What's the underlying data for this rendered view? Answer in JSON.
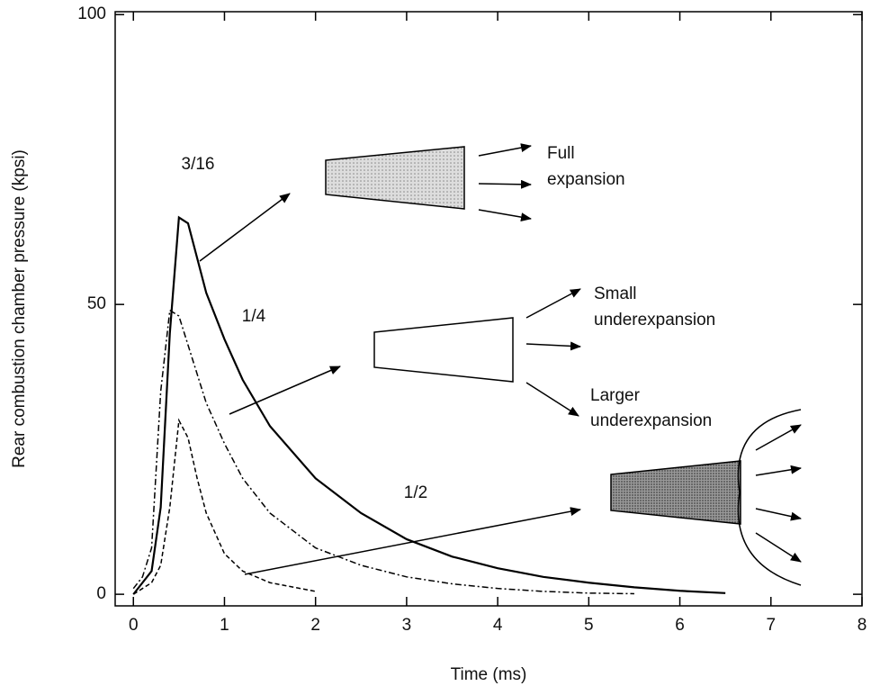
{
  "chart_data": {
    "type": "line",
    "xlabel": "Time (ms)",
    "ylabel": "Rear combustion chamber pressure (kpsi)",
    "xlim": [
      -0.2,
      8
    ],
    "ylim": [
      -2,
      100.5
    ],
    "xticks": [
      0,
      1,
      2,
      3,
      4,
      5,
      6,
      7,
      8
    ],
    "yticks": [
      0,
      50,
      100
    ],
    "x": [
      0,
      0.1,
      0.2,
      0.3,
      0.4,
      0.5,
      0.6,
      0.7,
      0.8,
      1,
      1.2,
      1.5,
      2,
      2.5,
      3,
      3.5,
      4,
      4.5,
      5,
      5.5,
      6,
      6.5
    ],
    "series": [
      {
        "name": "3/16",
        "color": "#000000",
        "dash": "solid",
        "values": [
          0,
          2,
          4,
          15,
          45,
          65,
          64,
          58,
          52,
          44,
          37,
          29,
          20,
          14,
          9.5,
          6.5,
          4.5,
          3,
          2,
          1.2,
          0.6,
          0.2
        ]
      },
      {
        "name": "1/4",
        "color": "#000000",
        "dash": "dashdot",
        "values": [
          1,
          3,
          8,
          35,
          49,
          48,
          43,
          38,
          33,
          26,
          20,
          14,
          8,
          5,
          3,
          1.8,
          1,
          0.5,
          0.2,
          0.1,
          null,
          null
        ]
      },
      {
        "name": "1/2",
        "color": "#000000",
        "dash": "dashed",
        "values": [
          0,
          1,
          2,
          5,
          15,
          30,
          27,
          20,
          14,
          7,
          4,
          2,
          0.5,
          null,
          null,
          null,
          null,
          null,
          null,
          null,
          null,
          null
        ]
      }
    ],
    "annotations": [
      "Full",
      "expansion",
      "Small",
      "underexpansion",
      "Larger",
      "underexpansion"
    ]
  }
}
